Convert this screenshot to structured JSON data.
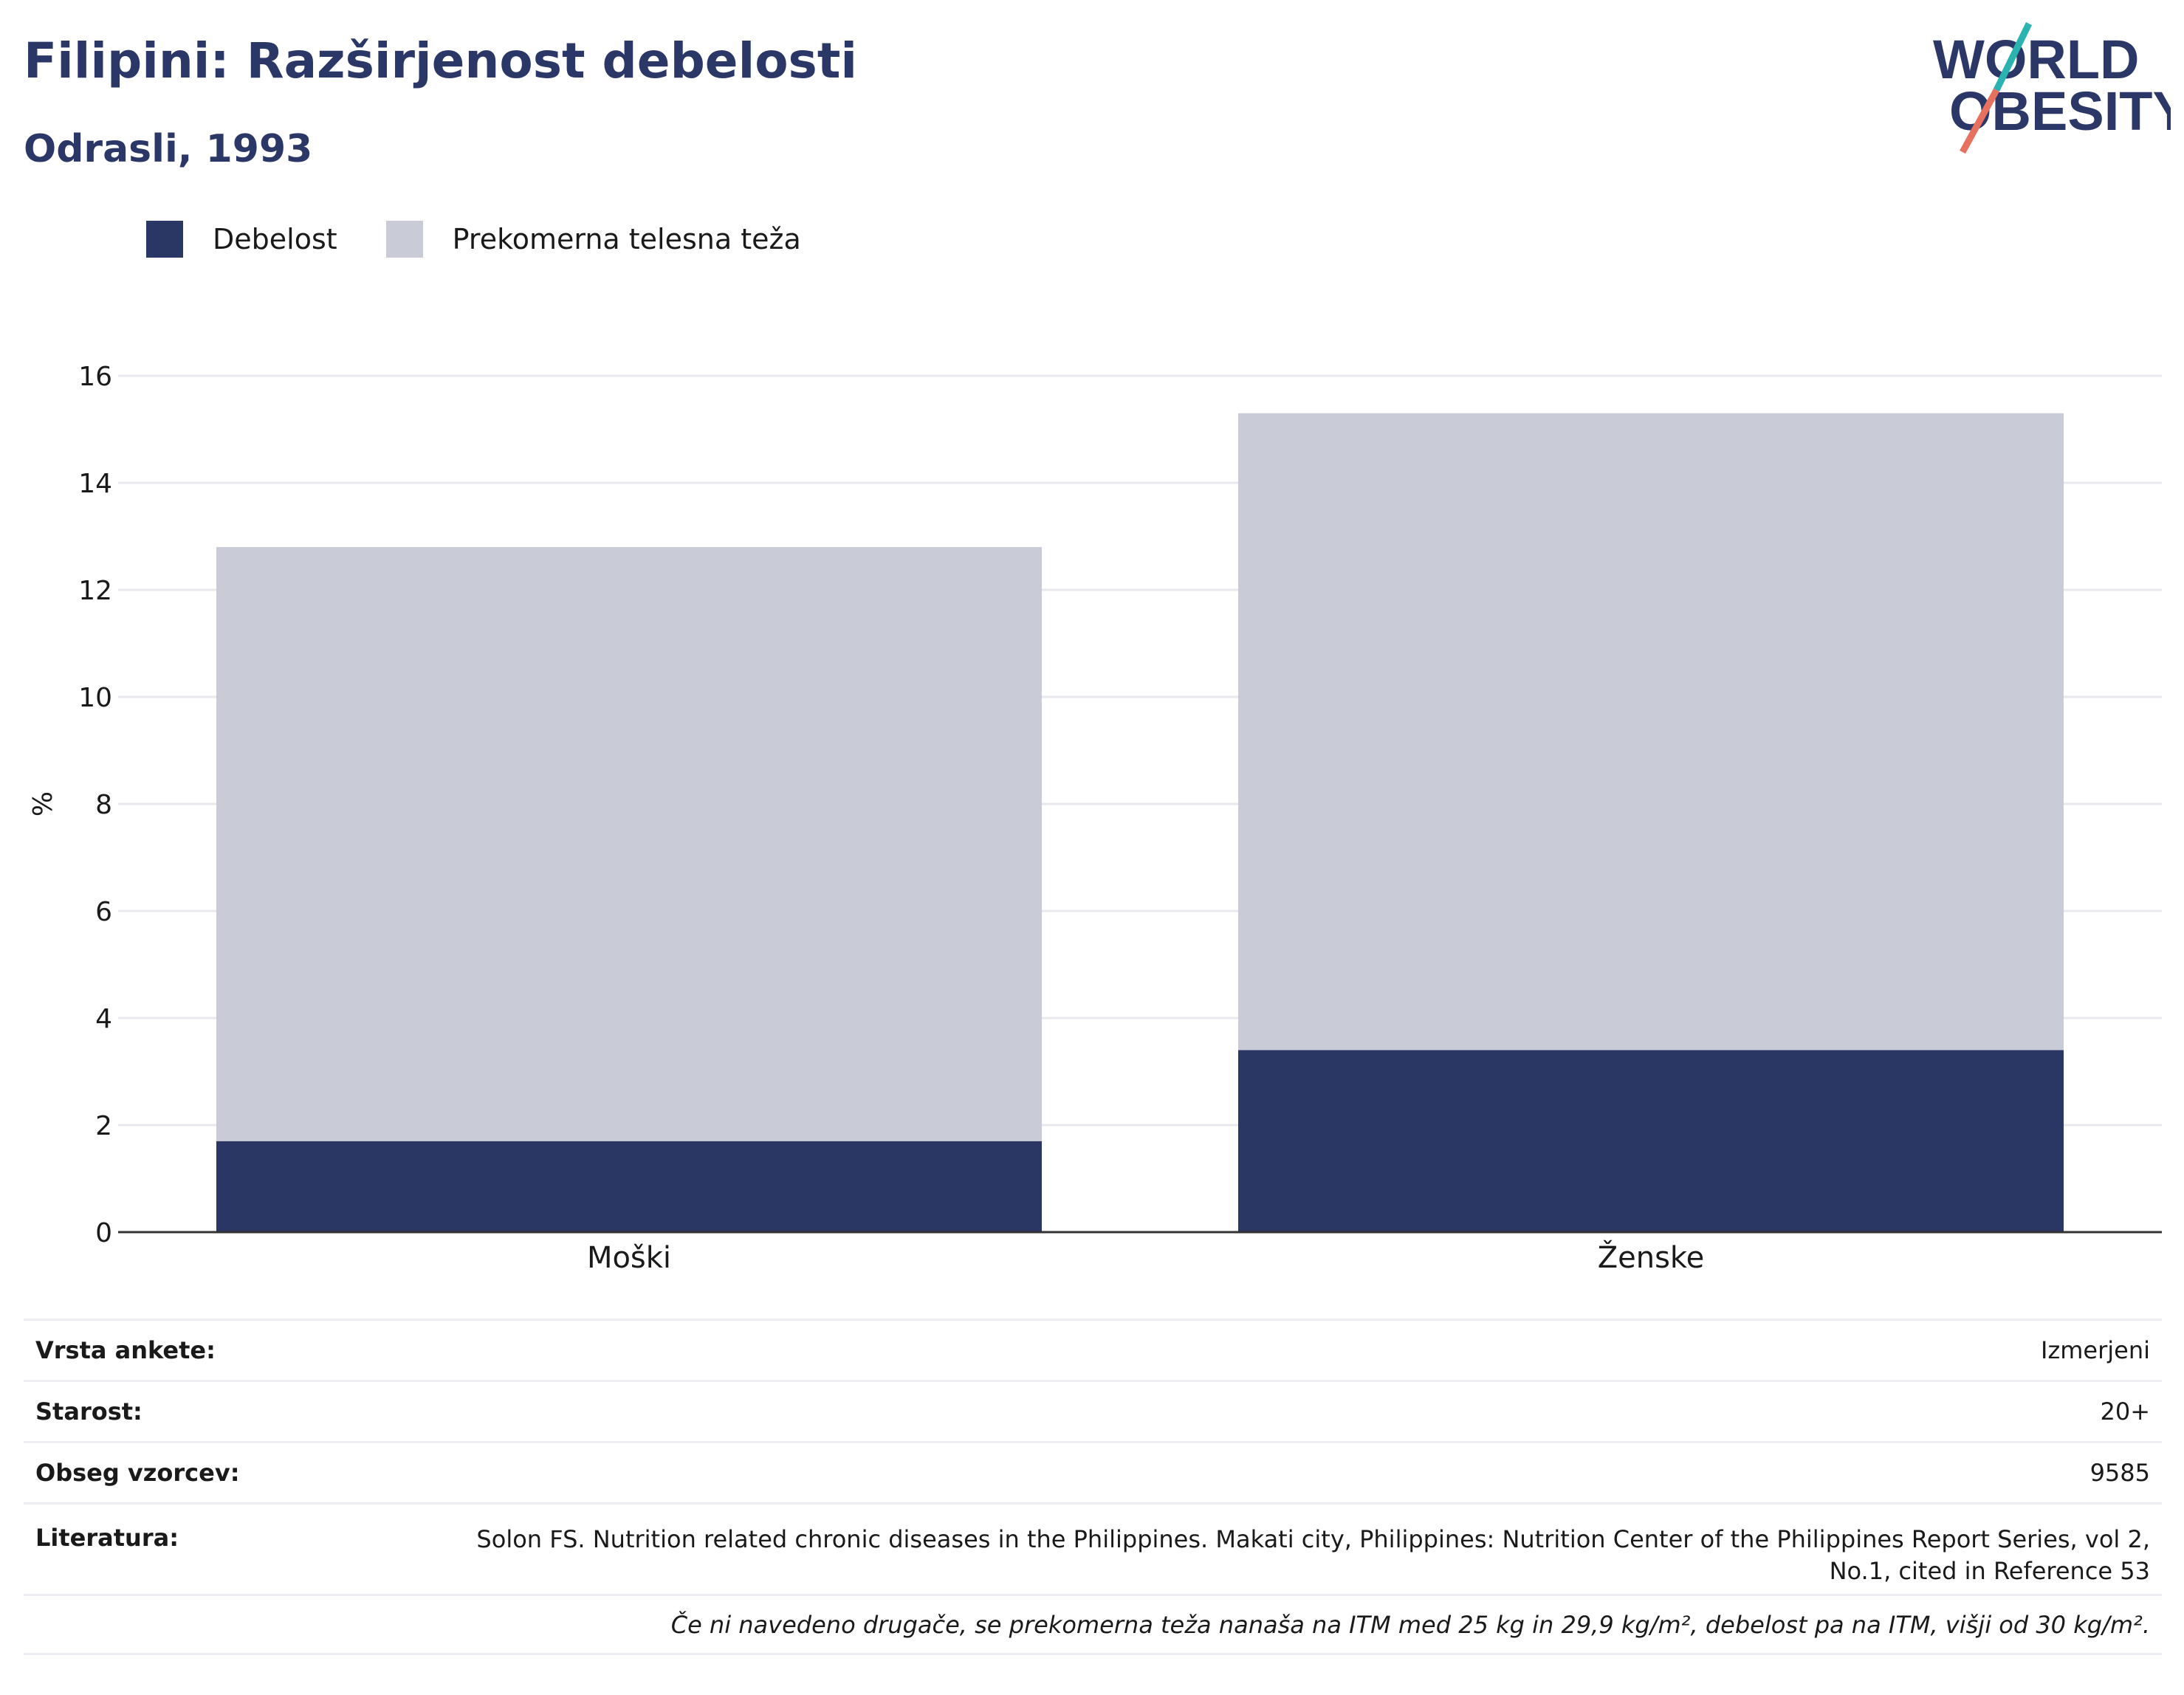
{
  "header": {
    "title": "Filipini: Razširjenost debelosti",
    "subtitle": "Odrasli, 1993"
  },
  "logo": {
    "line1": "WORLD",
    "line2": "OBESITY",
    "accent_top": "#2bb3b1",
    "accent_bottom": "#e7705f"
  },
  "colors": {
    "obesity": "#2a3663",
    "overweight": "#c9cbd6",
    "grid": "#e8e9ee",
    "axis": "#333333"
  },
  "chart_data": {
    "type": "bar",
    "stacked": true,
    "categories": [
      "Moški",
      "Ženske"
    ],
    "series": [
      {
        "name": "Debelost",
        "values": [
          1.7,
          3.4
        ]
      },
      {
        "name": "Prekomerna telesna teža",
        "values": [
          11.1,
          11.9
        ]
      }
    ],
    "ylabel": "%",
    "ylim": [
      0,
      16
    ],
    "yticks": [
      0,
      2,
      4,
      6,
      8,
      10,
      12,
      14,
      16
    ],
    "grid": true,
    "legend": "top-left"
  },
  "info": {
    "rows": [
      {
        "key": "Vrsta ankete:",
        "value": "Izmerjeni"
      },
      {
        "key": "Starost:",
        "value": "20+"
      },
      {
        "key": "Obseg vzorcev:",
        "value": "9585"
      },
      {
        "key": "Literatura:",
        "value": "Solon FS. Nutrition related chronic diseases in the Philippines. Makati city, Philippines: Nutrition Center of the Philippines Report Series, vol 2, No.1, cited in Reference 53"
      }
    ],
    "note": "Če ni navedeno drugače, se prekomerna teža nanaša na ITM med 25 kg in 29,9 kg/m², debelost pa na ITM, višji od 30 kg/m²."
  }
}
